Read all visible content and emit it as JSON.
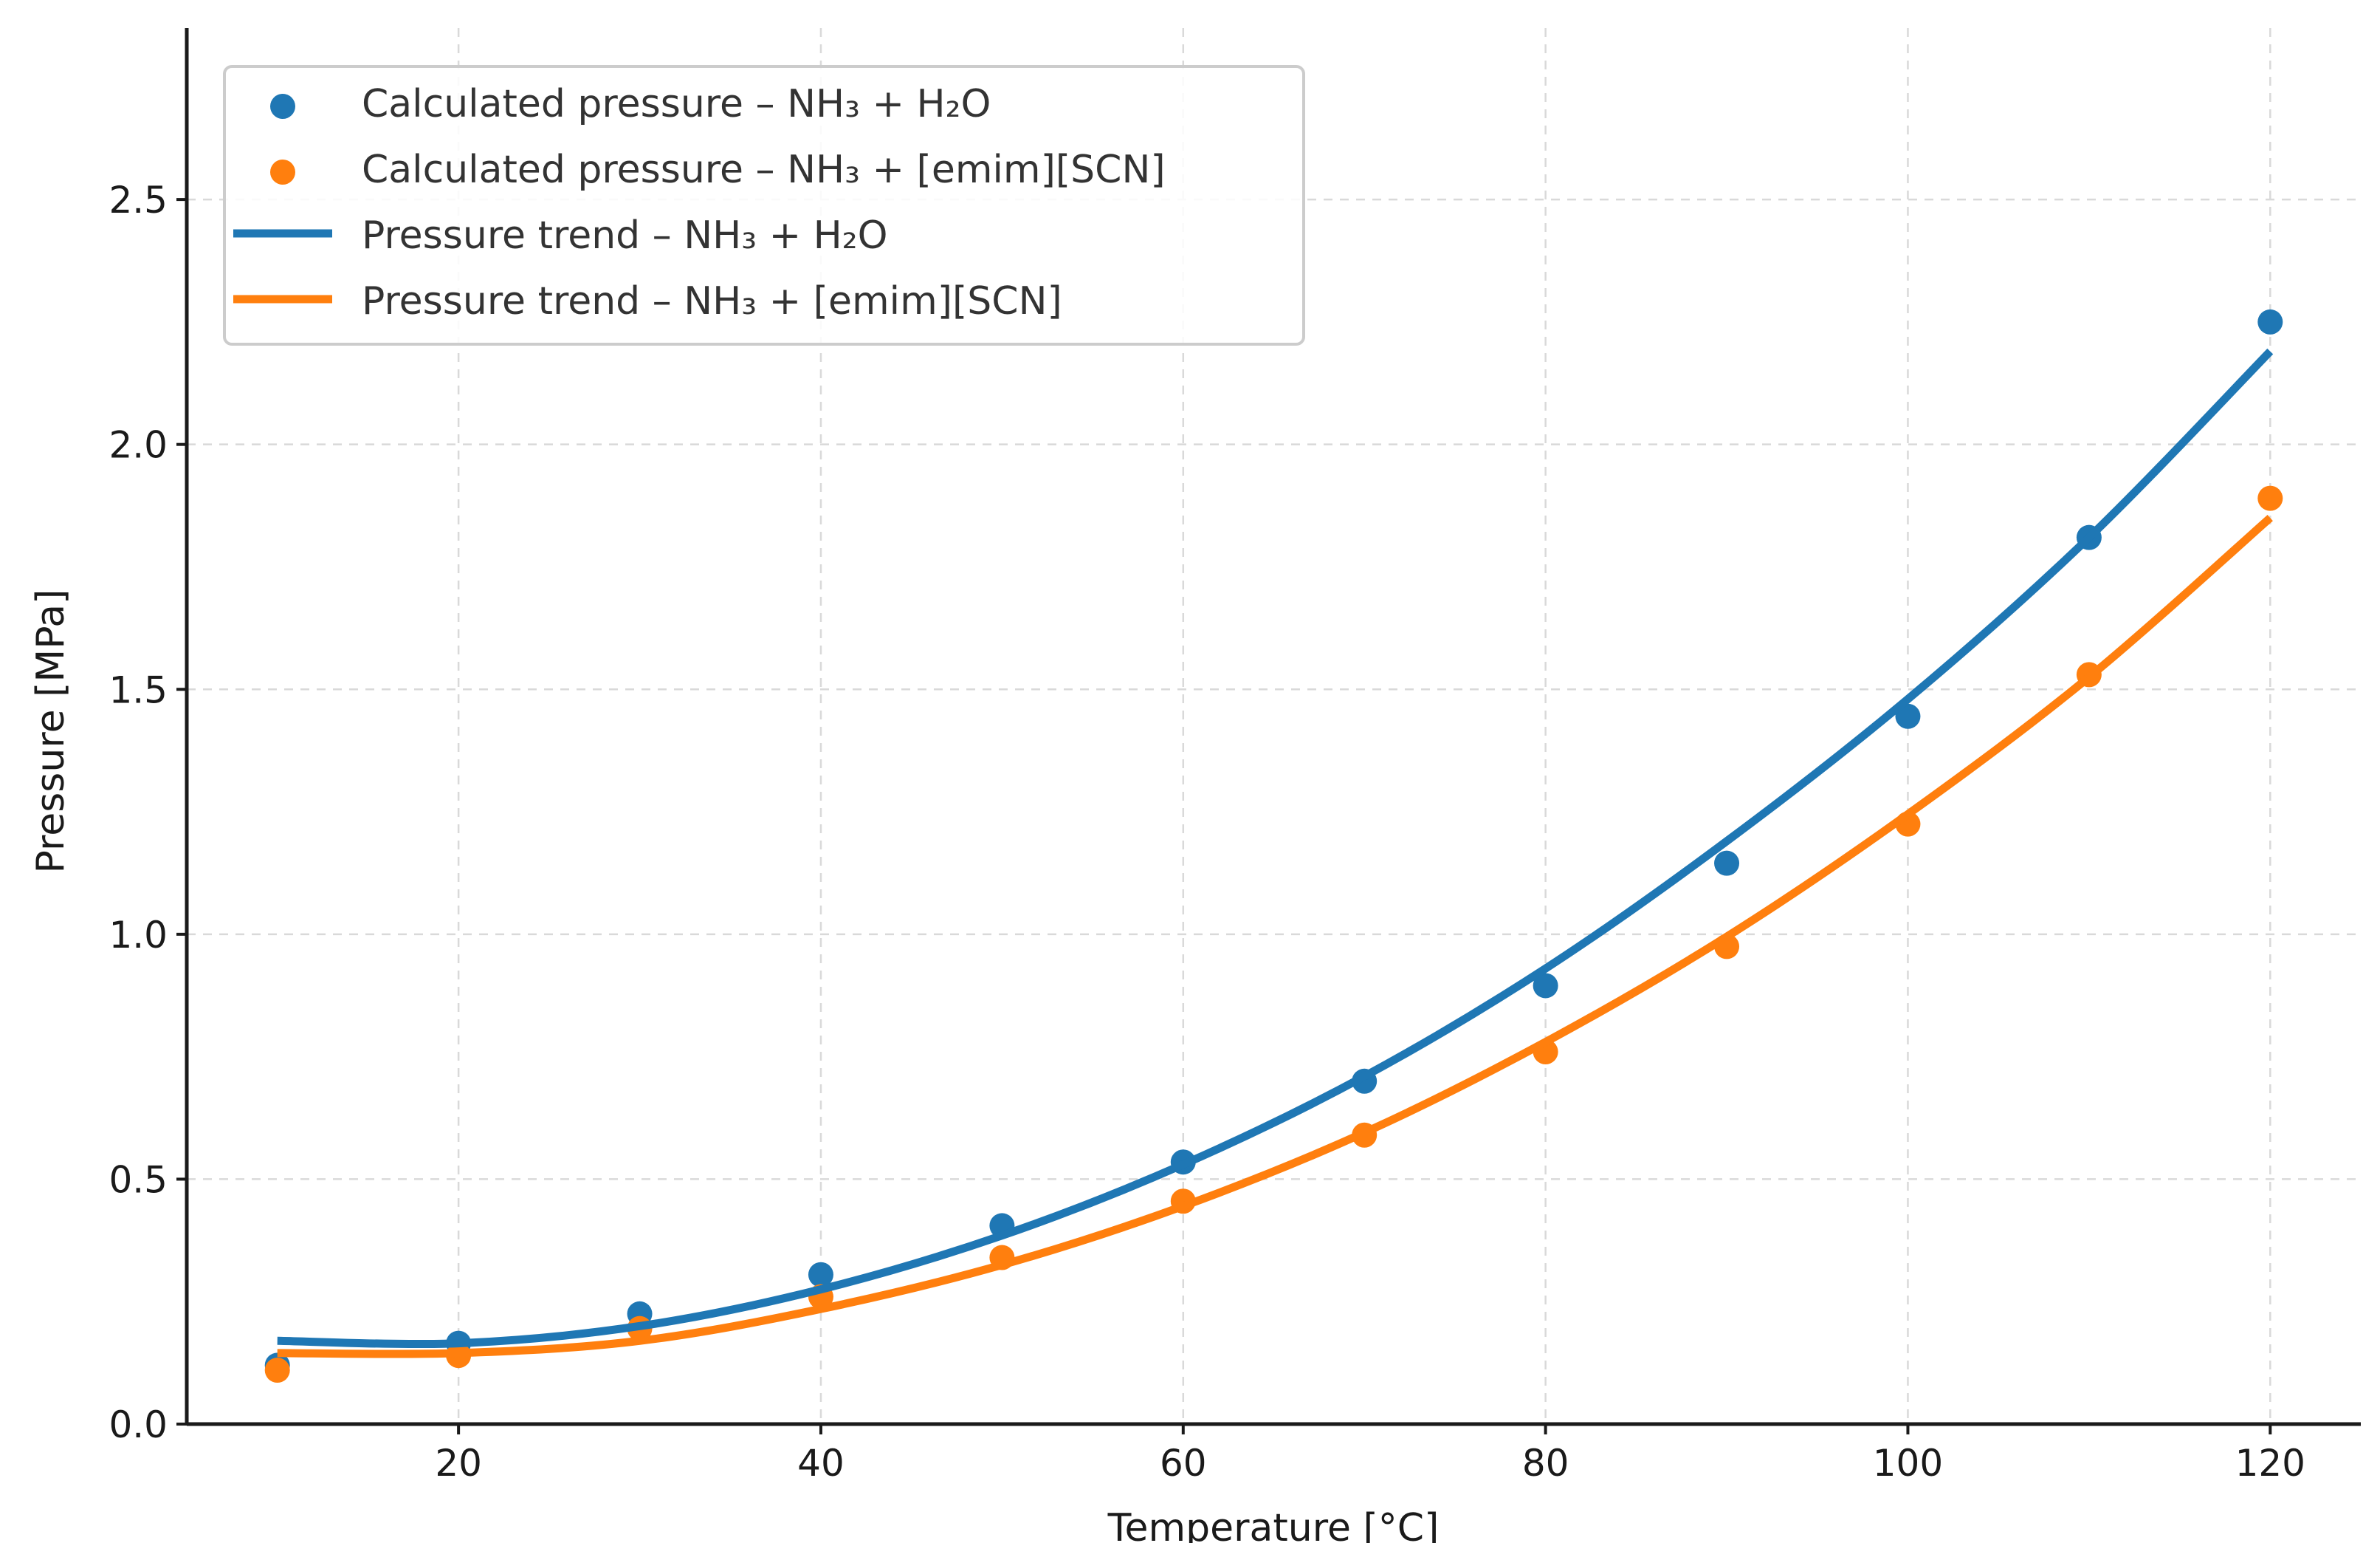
{
  "chart_data": {
    "type": "scatter",
    "title": "",
    "xlabel": "Temperature [°C]",
    "ylabel": "Pressure [MPa]",
    "xlim": [
      5,
      125
    ],
    "ylim": [
      0,
      2.85
    ],
    "xticks": [
      20,
      40,
      60,
      80,
      100,
      120
    ],
    "yticks": [
      0.0,
      0.5,
      1.0,
      1.5,
      2.0,
      2.5
    ],
    "xtick_labels": [
      "20",
      "40",
      "60",
      "80",
      "100",
      "120"
    ],
    "ytick_labels": [
      "0.0",
      "0.5",
      "1.0",
      "1.5",
      "2.0",
      "2.5"
    ],
    "grid": true,
    "legend_position": "top-left",
    "x": [
      10,
      20,
      30,
      40,
      50,
      60,
      70,
      80,
      90,
      100,
      110,
      120
    ],
    "series": [
      {
        "name": "Calculated pressure – NH₃ + H₂O",
        "kind": "scatter",
        "color": "#1f77b4",
        "values": [
          0.12,
          0.165,
          0.225,
          0.305,
          0.405,
          0.535,
          0.7,
          0.895,
          1.145,
          1.445,
          1.81,
          2.25
        ]
      },
      {
        "name": "Calculated pressure – NH₃ + [emim][SCN]",
        "kind": "scatter",
        "color": "#ff7f0e",
        "values": [
          0.11,
          0.14,
          0.195,
          0.26,
          0.34,
          0.455,
          0.59,
          0.76,
          0.975,
          1.225,
          1.53,
          1.89
        ]
      },
      {
        "name": "Pressure trend – NH₃ + H₂O",
        "kind": "line",
        "color": "#1f77b4",
        "values": [
          0.17,
          0.165,
          0.2,
          0.275,
          0.385,
          0.53,
          0.71,
          0.93,
          1.19,
          1.48,
          1.81,
          2.19
        ]
      },
      {
        "name": "Pressure trend – NH₃ + [emim][SCN]",
        "kind": "line",
        "color": "#ff7f0e",
        "values": [
          0.145,
          0.145,
          0.17,
          0.235,
          0.325,
          0.445,
          0.595,
          0.78,
          0.995,
          1.245,
          1.525,
          1.85
        ]
      }
    ]
  }
}
